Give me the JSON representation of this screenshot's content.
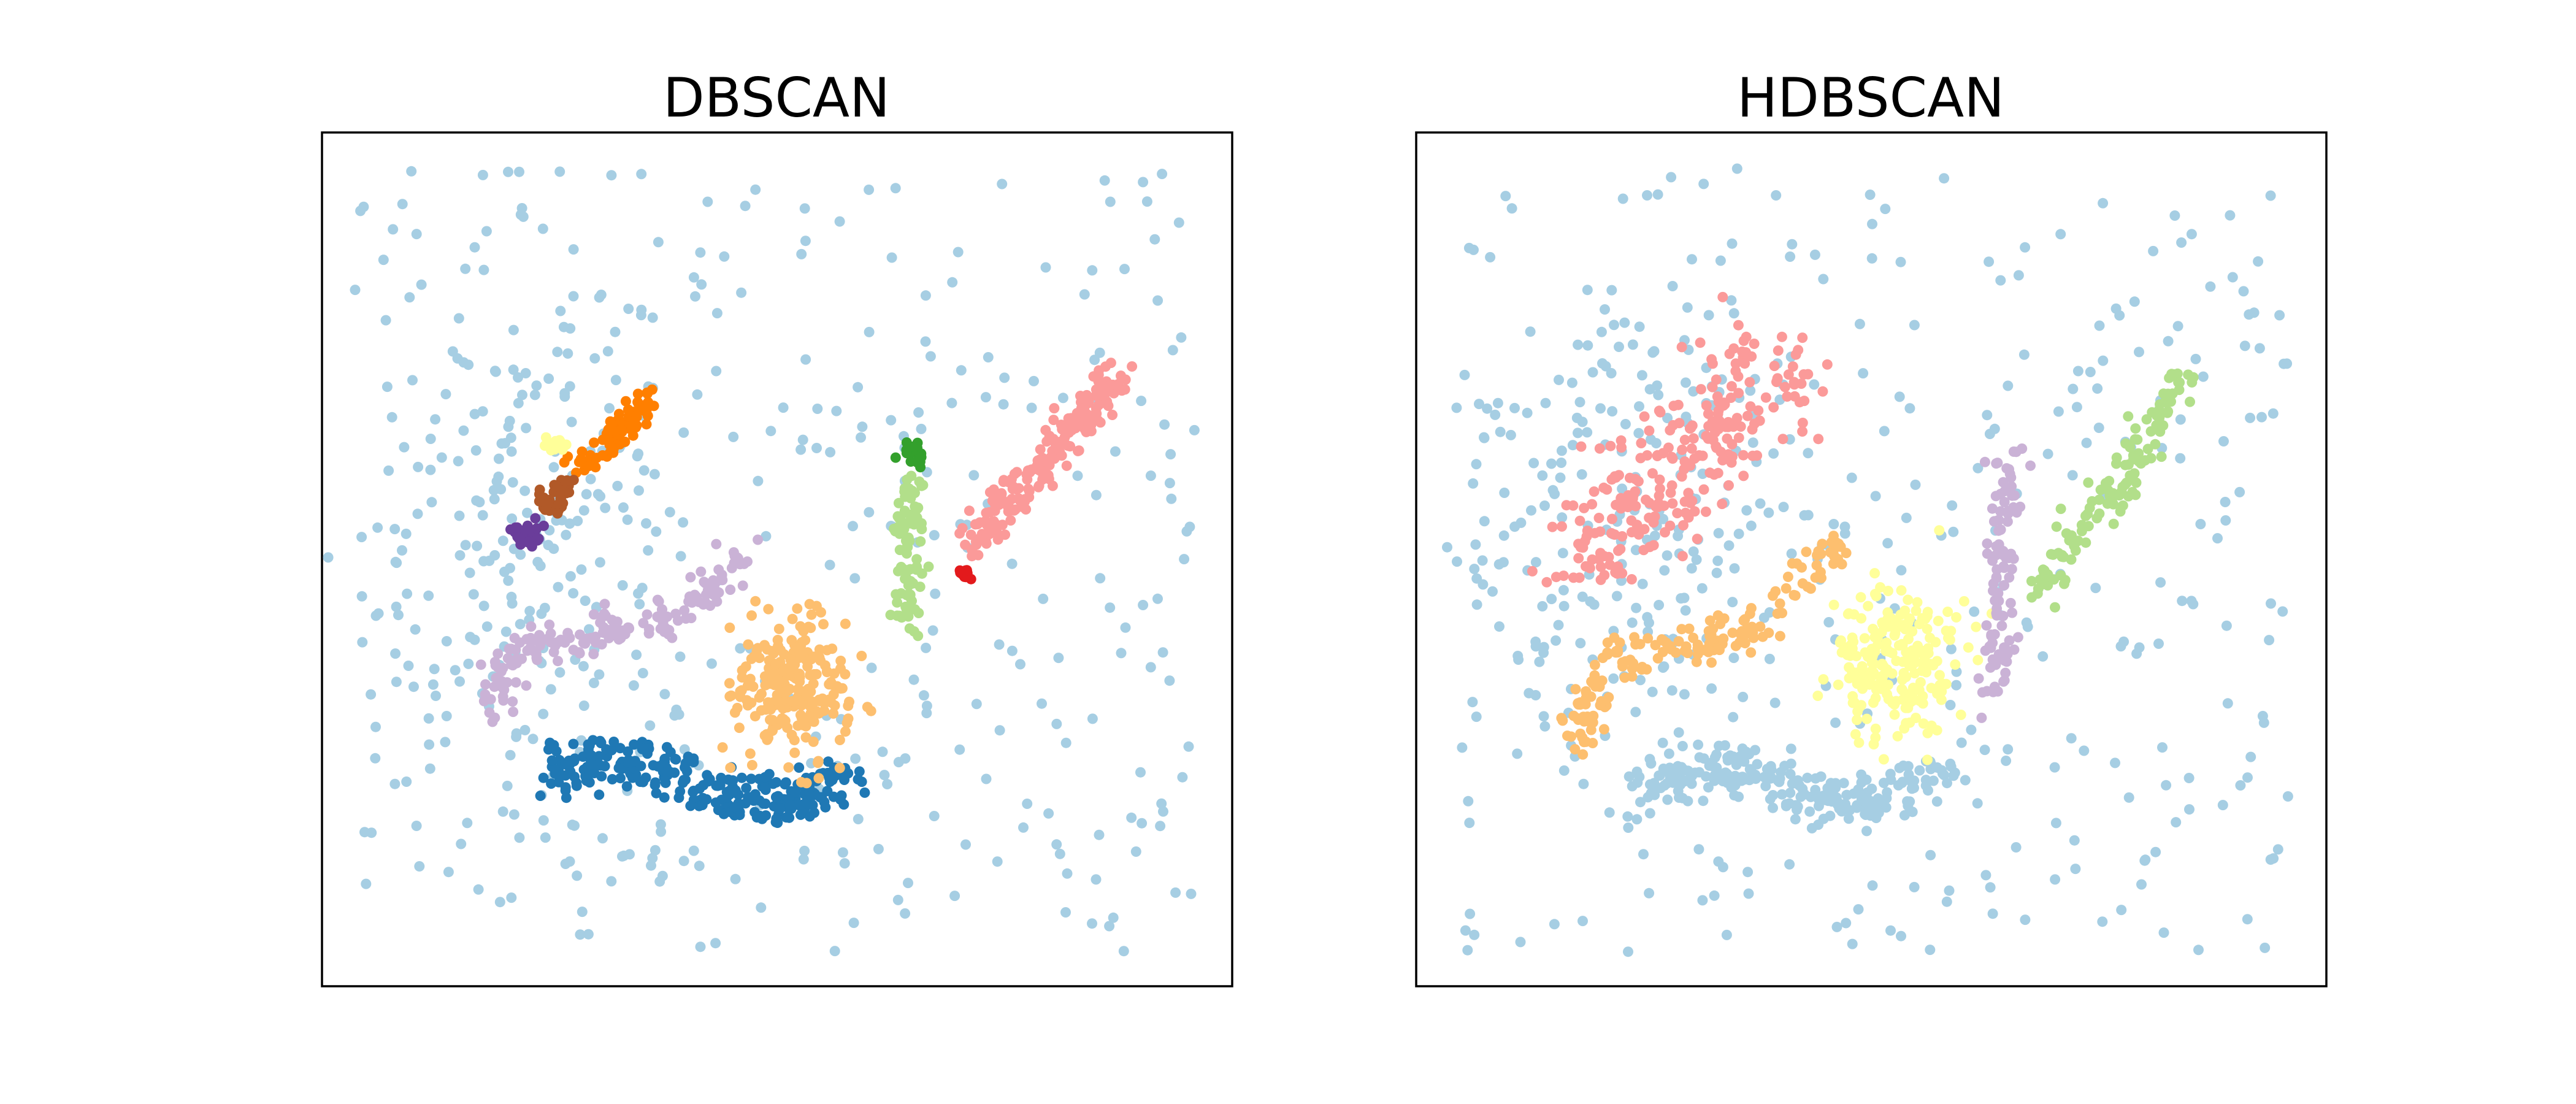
{
  "colors": {
    "noise": "#a6cee3",
    "cluster_palette": [
      "#a6cee3",
      "#1f78b4",
      "#b2df8a",
      "#33a02c",
      "#fb9a99",
      "#e31a1c",
      "#fdbf6f",
      "#ff7f00",
      "#cab2d6",
      "#6a3d9a",
      "#ffff99",
      "#b15928"
    ]
  },
  "chart_data": [
    {
      "type": "scatter",
      "title": "DBSCAN",
      "xlim": [
        0,
        100
      ],
      "ylim": [
        0,
        100
      ],
      "grid": false,
      "axes_ticks": false,
      "noise": {
        "count": 520,
        "color": "#a6cee3"
      },
      "clusters": [
        {
          "color": "#1f78b4",
          "shape": "wave",
          "count": 280,
          "points": [
            [
              25,
              25.5
            ],
            [
              30,
              26.5
            ],
            [
              36,
              26
            ],
            [
              42,
              23
            ],
            [
              48,
              21.5
            ],
            [
              53,
              22.5
            ],
            [
              58,
              24.5
            ]
          ],
          "spread": 1.4
        },
        {
          "color": "#fdbf6f",
          "shape": "blob",
          "count": 240,
          "center": [
            51.5,
            35
          ],
          "size": [
            5.5,
            7.5
          ]
        },
        {
          "color": "#cab2d6",
          "shape": "curve",
          "count": 170,
          "points": [
            [
              18,
              32
            ],
            [
              21,
              39
            ],
            [
              28,
              41
            ],
            [
              38,
              42.5
            ],
            [
              42,
              46
            ],
            [
              47,
              52
            ]
          ],
          "spread": 1.2
        },
        {
          "color": "#b2df8a",
          "shape": "curve",
          "count": 90,
          "points": [
            [
              64,
              42.5
            ],
            [
              64.5,
              48
            ],
            [
              64.3,
              55
            ],
            [
              64.8,
              60
            ]
          ],
          "spread": 0.9
        },
        {
          "color": "#33a02c",
          "shape": "blob",
          "count": 20,
          "center": [
            65.3,
            62.5
          ],
          "size": [
            1,
            1.2
          ]
        },
        {
          "color": "#fb9a99",
          "shape": "curve",
          "count": 190,
          "points": [
            [
              71,
              52
            ],
            [
              75,
              56.5
            ],
            [
              79,
              61
            ],
            [
              83,
              66
            ],
            [
              86.5,
              71
            ]
          ],
          "spread": 1.2
        },
        {
          "color": "#e31a1c",
          "shape": "blob",
          "count": 14,
          "center": [
            70.5,
            48.5
          ],
          "size": [
            0.8,
            0.8
          ]
        },
        {
          "color": "#ff7f00",
          "shape": "curve",
          "count": 80,
          "points": [
            [
              28,
              61
            ],
            [
              31,
              63.5
            ],
            [
              34,
              66
            ],
            [
              35.5,
              69
            ]
          ],
          "spread": 0.9
        },
        {
          "color": "#ffff99",
          "shape": "blob",
          "count": 20,
          "center": [
            25.5,
            63.5
          ],
          "size": [
            1.5,
            0.9
          ]
        },
        {
          "color": "#b15928",
          "shape": "curve",
          "count": 40,
          "points": [
            [
              24.5,
              55.5
            ],
            [
              26,
              58
            ],
            [
              27.5,
              60
            ]
          ],
          "spread": 0.8
        },
        {
          "color": "#6a3d9a",
          "shape": "blob",
          "count": 30,
          "center": [
            22.5,
            52.8
          ],
          "size": [
            1.6,
            1.4
          ]
        }
      ]
    },
    {
      "type": "scatter",
      "title": "HDBSCAN",
      "xlim": [
        0,
        100
      ],
      "ylim": [
        0,
        100
      ],
      "grid": false,
      "axes_ticks": false,
      "noise": {
        "count": 500,
        "color": "#a6cee3"
      },
      "clusters": [
        {
          "color": "#a6cee3",
          "shape": "wave",
          "count": 240,
          "points": [
            [
              25,
              22.5
            ],
            [
              31,
              25
            ],
            [
              37,
              25.5
            ],
            [
              43,
              22.5
            ],
            [
              49,
              21
            ],
            [
              54,
              23
            ],
            [
              58,
              25.5
            ]
          ],
          "spread": 1.4
        },
        {
          "color": "#ffff99",
          "shape": "blob",
          "count": 220,
          "center": [
            52.5,
            38
          ],
          "size": [
            6.5,
            7.5
          ]
        },
        {
          "color": "#fdbf6f",
          "shape": "curve",
          "count": 170,
          "points": [
            [
              17,
              29
            ],
            [
              21,
              38
            ],
            [
              28,
              40
            ],
            [
              36,
              41
            ],
            [
              41,
              45
            ],
            [
              46.5,
              52.5
            ]
          ],
          "spread": 1.3
        },
        {
          "color": "#cab2d6",
          "shape": "curve",
          "count": 100,
          "points": [
            [
              63,
              34
            ],
            [
              64,
              42
            ],
            [
              64.3,
              52
            ],
            [
              65,
              63
            ]
          ],
          "spread": 1.0
        },
        {
          "color": "#b2df8a",
          "shape": "curve",
          "count": 130,
          "points": [
            [
              69,
              46
            ],
            [
              72,
              53
            ],
            [
              77,
              59
            ],
            [
              81,
              65
            ],
            [
              84.5,
              72
            ]
          ],
          "spread": 1.2
        },
        {
          "color": "#fb9a99",
          "shape": "area",
          "count": 250,
          "points": [
            [
              18,
              50
            ],
            [
              24,
              56
            ],
            [
              30,
              62
            ],
            [
              36,
              68
            ],
            [
              40,
              73
            ]
          ],
          "spread": 3.5
        }
      ]
    }
  ]
}
